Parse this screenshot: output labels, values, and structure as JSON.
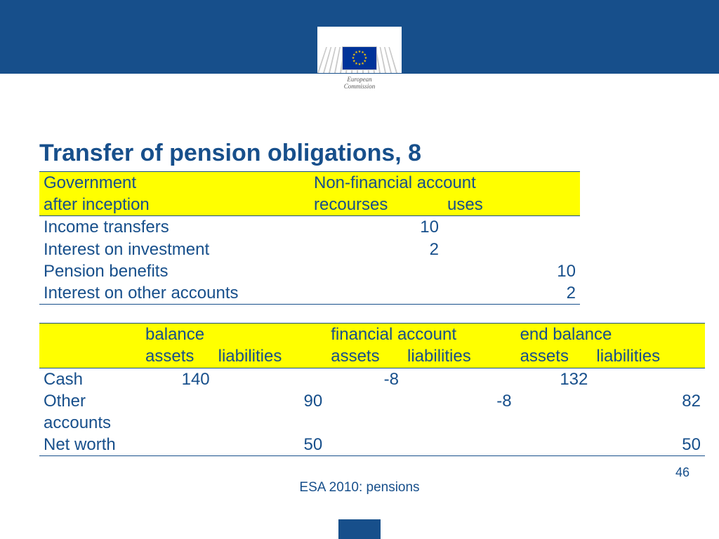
{
  "colors": {
    "header_bg": "#174f8b",
    "text": "#174f8b",
    "highlight": "#ffff00",
    "border": "#174f8b",
    "eu_flag_bg": "#003399",
    "eu_flag_star": "#ffcc00",
    "page_bg": "#ffffff"
  },
  "logo": {
    "line1": "European",
    "line2": "Commission"
  },
  "title": "Transfer of pension obligations, 8",
  "table1": {
    "header_left": "Government",
    "header_right": "Non-financial account",
    "sub_left": "after inception",
    "sub_mid": "recourses",
    "sub_right": "uses",
    "rows": [
      {
        "label": "Income transfers",
        "recourses": "10",
        "uses": ""
      },
      {
        "label": "Interest on investment",
        "recourses": "2",
        "uses": ""
      },
      {
        "label": "Pension benefits",
        "recourses": "",
        "uses": "10"
      },
      {
        "label": "Interest on other accounts",
        "recourses": "",
        "uses": "2"
      }
    ]
  },
  "table2": {
    "section_labels": {
      "balance": "balance",
      "financial": "financial account",
      "end": "end balance"
    },
    "col_labels": {
      "assets": "assets",
      "liabilities": "liabilities"
    },
    "rows": [
      {
        "label": "Cash",
        "b_a": "140",
        "b_l": "",
        "f_a": "-8",
        "f_l": "",
        "e_a": "132",
        "e_l": ""
      },
      {
        "label": "Other accounts",
        "b_a": "",
        "b_l": "90",
        "f_a": "",
        "f_l": "-8",
        "e_a": "",
        "e_l": "82"
      },
      {
        "label": "Net worth",
        "b_a": "",
        "b_l": "50",
        "f_a": "",
        "f_l": "",
        "e_a": "",
        "e_l": "50"
      }
    ]
  },
  "footer": "ESA 2010: pensions",
  "page_number": "46"
}
